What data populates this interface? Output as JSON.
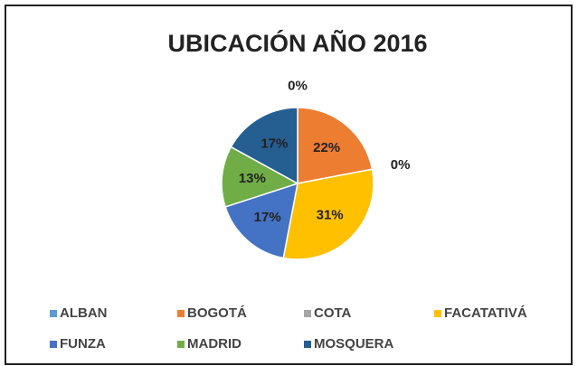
{
  "chart_data": {
    "type": "pie",
    "title": "UBICACIÓN  AÑO 2016",
    "categories": [
      "ALBAN",
      "BOGOTÁ",
      "COTA",
      "FACATATIVÁ",
      "FUNZA",
      "MADRID",
      "MOSQUERA"
    ],
    "values": [
      0,
      22,
      0,
      31,
      17,
      13,
      17
    ],
    "value_labels": [
      "0%",
      "22%",
      "0%",
      "31%",
      "17%",
      "13%",
      "17%"
    ],
    "colors": [
      "#5b9bd5",
      "#ed7d31",
      "#a5a5a5",
      "#ffc000",
      "#4472c4",
      "#70ad47",
      "#255e91"
    ],
    "legend": "bottom"
  }
}
